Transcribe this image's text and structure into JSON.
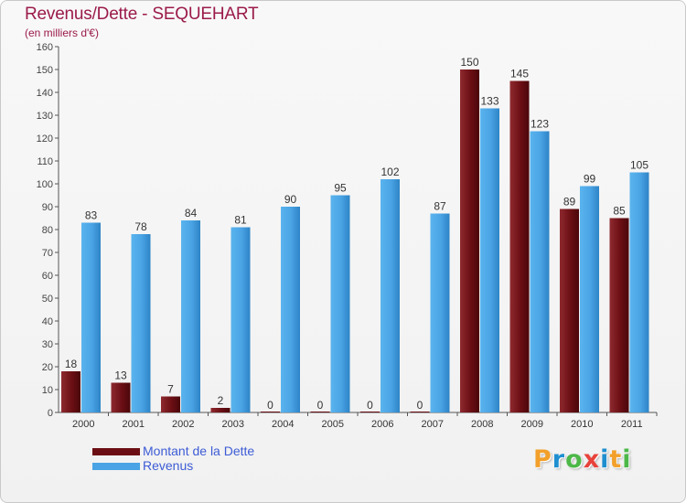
{
  "header": {
    "title": "Revenus/Dette - SEQUEHART",
    "subtitle": "(en milliers d'€)"
  },
  "legend": {
    "items": [
      {
        "label": "Montant de la Dette",
        "color": "#6b0f14"
      },
      {
        "label": "Revenus",
        "color": "#4aa3e4"
      }
    ]
  },
  "logo": {
    "text": "Proxiti",
    "letters": [
      {
        "ch": "P",
        "color": "#f2a02a"
      },
      {
        "ch": "r",
        "color": "#1f8fd0"
      },
      {
        "ch": "o",
        "color": "#4cb848"
      },
      {
        "ch": "x",
        "color": "#e8423a"
      },
      {
        "ch": "i",
        "color": "#1f8fd0"
      },
      {
        "ch": "t",
        "color": "#f2a02a"
      },
      {
        "ch": "i",
        "color": "#4cb848"
      }
    ]
  },
  "chart_data": {
    "type": "bar",
    "title": "Revenus/Dette - SEQUEHART",
    "subtitle": "(en milliers d'€)",
    "categories": [
      "2000",
      "2001",
      "2002",
      "2003",
      "2004",
      "2005",
      "2006",
      "2007",
      "2008",
      "2009",
      "2010",
      "2011"
    ],
    "series": [
      {
        "name": "Montant de la Dette",
        "color": "#6b0f14",
        "values": [
          18,
          13,
          7,
          2,
          0,
          0,
          0,
          0,
          150,
          145,
          89,
          85
        ]
      },
      {
        "name": "Revenus",
        "color": "#4aa3e4",
        "values": [
          83,
          78,
          84,
          81,
          90,
          95,
          102,
          87,
          133,
          123,
          99,
          105
        ]
      }
    ],
    "ylim": [
      0,
      160
    ],
    "yticks": [
      0,
      10,
      20,
      30,
      40,
      50,
      60,
      70,
      80,
      90,
      100,
      110,
      120,
      130,
      140,
      150,
      160
    ],
    "grid": false,
    "legend_position": "bottom-left"
  }
}
